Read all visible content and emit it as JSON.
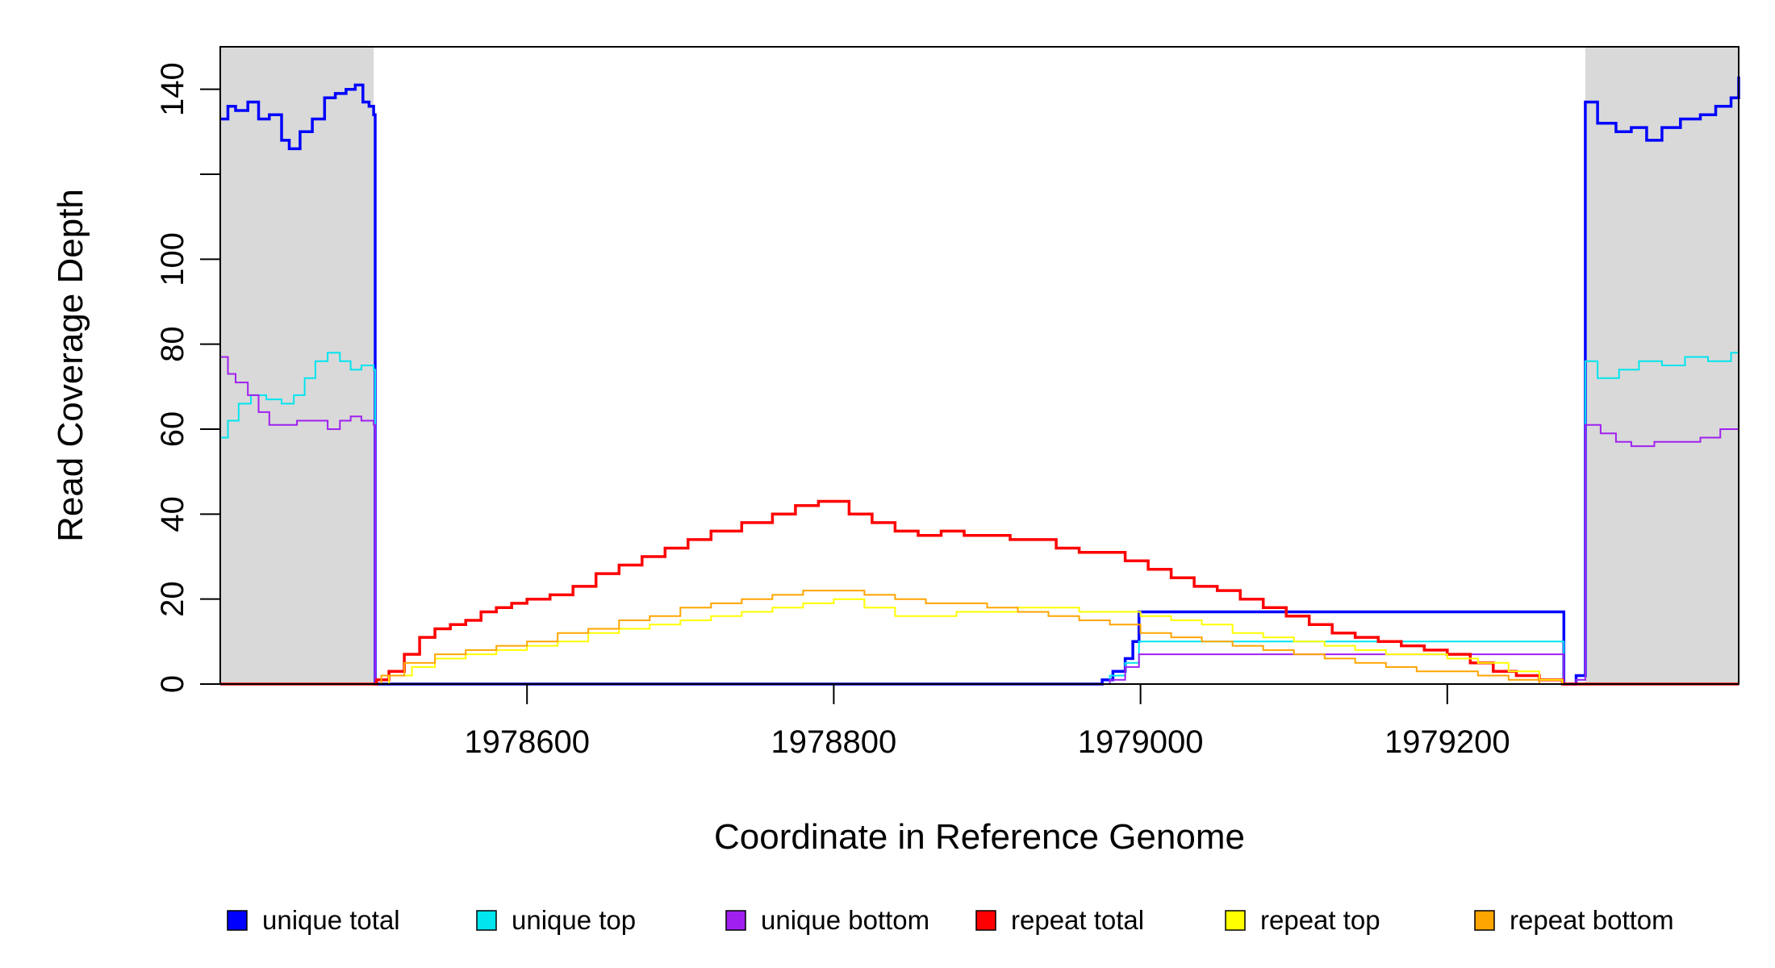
{
  "chart_data": {
    "type": "line",
    "xlabel": "Coordinate in Reference Genome",
    "ylabel": "Read Coverage Depth",
    "xlim": [
      1978400,
      1979390
    ],
    "ylim": [
      0,
      150
    ],
    "x_ticks": [
      1978600,
      1978800,
      1979000,
      1979200
    ],
    "x_tick_labels": [
      "1978600",
      "1978800",
      "1979000",
      "1979200"
    ],
    "y_ticks": [
      0,
      20,
      40,
      60,
      80,
      100,
      120,
      140
    ],
    "y_tick_labels": [
      "0",
      "20",
      "40",
      "60",
      "80",
      "100",
      "",
      "140"
    ],
    "shaded_regions": [
      [
        1978400,
        1978500
      ],
      [
        1979290,
        1979390
      ]
    ],
    "shade_color": "#d9d9d9",
    "legend_position": "bottom",
    "series": [
      {
        "name": "unique total",
        "color": "#0000ff",
        "points": [
          [
            1978400,
            133
          ],
          [
            1978405,
            136
          ],
          [
            1978410,
            135
          ],
          [
            1978418,
            137
          ],
          [
            1978425,
            133
          ],
          [
            1978432,
            134
          ],
          [
            1978440,
            128
          ],
          [
            1978445,
            126
          ],
          [
            1978452,
            130
          ],
          [
            1978460,
            133
          ],
          [
            1978468,
            138
          ],
          [
            1978475,
            139
          ],
          [
            1978482,
            140
          ],
          [
            1978488,
            141
          ],
          [
            1978493,
            137
          ],
          [
            1978497,
            136
          ],
          [
            1978500,
            134
          ],
          [
            1978501,
            0
          ],
          [
            1978970,
            0
          ],
          [
            1978975,
            1
          ],
          [
            1978982,
            3
          ],
          [
            1978990,
            6
          ],
          [
            1978995,
            10
          ],
          [
            1978999,
            17
          ],
          [
            1979275,
            17
          ],
          [
            1979276,
            0
          ],
          [
            1979283,
            0
          ],
          [
            1979284,
            2
          ],
          [
            1979290,
            137
          ],
          [
            1979298,
            132
          ],
          [
            1979310,
            130
          ],
          [
            1979320,
            131
          ],
          [
            1979330,
            128
          ],
          [
            1979340,
            131
          ],
          [
            1979352,
            133
          ],
          [
            1979365,
            134
          ],
          [
            1979375,
            136
          ],
          [
            1979385,
            138
          ],
          [
            1979390,
            143
          ]
        ]
      },
      {
        "name": "unique top",
        "color": "#00e5ee",
        "points": [
          [
            1978400,
            58
          ],
          [
            1978405,
            62
          ],
          [
            1978412,
            66
          ],
          [
            1978420,
            68
          ],
          [
            1978430,
            67
          ],
          [
            1978440,
            66
          ],
          [
            1978448,
            68
          ],
          [
            1978455,
            72
          ],
          [
            1978462,
            76
          ],
          [
            1978470,
            78
          ],
          [
            1978478,
            76
          ],
          [
            1978485,
            74
          ],
          [
            1978492,
            75
          ],
          [
            1978500,
            74
          ],
          [
            1978501,
            0
          ],
          [
            1978970,
            0
          ],
          [
            1978980,
            2
          ],
          [
            1978990,
            5
          ],
          [
            1978999,
            10
          ],
          [
            1979275,
            10
          ],
          [
            1979276,
            0
          ],
          [
            1979284,
            1
          ],
          [
            1979290,
            76
          ],
          [
            1979298,
            72
          ],
          [
            1979312,
            74
          ],
          [
            1979325,
            76
          ],
          [
            1979340,
            75
          ],
          [
            1979355,
            77
          ],
          [
            1979370,
            76
          ],
          [
            1979385,
            78
          ],
          [
            1979390,
            84
          ]
        ]
      },
      {
        "name": "unique bottom",
        "color": "#a020f0",
        "points": [
          [
            1978400,
            77
          ],
          [
            1978405,
            73
          ],
          [
            1978410,
            71
          ],
          [
            1978418,
            68
          ],
          [
            1978425,
            64
          ],
          [
            1978432,
            61
          ],
          [
            1978440,
            61
          ],
          [
            1978450,
            62
          ],
          [
            1978460,
            62
          ],
          [
            1978470,
            60
          ],
          [
            1978478,
            62
          ],
          [
            1978485,
            63
          ],
          [
            1978492,
            62
          ],
          [
            1978500,
            61
          ],
          [
            1978501,
            0
          ],
          [
            1978970,
            0
          ],
          [
            1978980,
            1
          ],
          [
            1978990,
            4
          ],
          [
            1978999,
            7
          ],
          [
            1979275,
            7
          ],
          [
            1979276,
            0
          ],
          [
            1979284,
            1
          ],
          [
            1979290,
            61
          ],
          [
            1979300,
            59
          ],
          [
            1979310,
            57
          ],
          [
            1979320,
            56
          ],
          [
            1979335,
            57
          ],
          [
            1979350,
            57
          ],
          [
            1979365,
            58
          ],
          [
            1979378,
            60
          ],
          [
            1979390,
            61
          ]
        ]
      },
      {
        "name": "repeat total",
        "color": "#ff0000",
        "points": [
          [
            1978400,
            0
          ],
          [
            1978500,
            0
          ],
          [
            1978502,
            1
          ],
          [
            1978510,
            3
          ],
          [
            1978520,
            7
          ],
          [
            1978530,
            11
          ],
          [
            1978540,
            13
          ],
          [
            1978550,
            14
          ],
          [
            1978560,
            15
          ],
          [
            1978570,
            17
          ],
          [
            1978580,
            18
          ],
          [
            1978590,
            19
          ],
          [
            1978600,
            20
          ],
          [
            1978615,
            21
          ],
          [
            1978630,
            23
          ],
          [
            1978645,
            26
          ],
          [
            1978660,
            28
          ],
          [
            1978675,
            30
          ],
          [
            1978690,
            32
          ],
          [
            1978705,
            34
          ],
          [
            1978720,
            36
          ],
          [
            1978740,
            38
          ],
          [
            1978760,
            40
          ],
          [
            1978775,
            42
          ],
          [
            1978790,
            43
          ],
          [
            1978800,
            43
          ],
          [
            1978810,
            40
          ],
          [
            1978825,
            38
          ],
          [
            1978840,
            36
          ],
          [
            1978855,
            35
          ],
          [
            1978870,
            36
          ],
          [
            1978885,
            35
          ],
          [
            1978900,
            35
          ],
          [
            1978915,
            34
          ],
          [
            1978930,
            34
          ],
          [
            1978945,
            32
          ],
          [
            1978960,
            31
          ],
          [
            1978975,
            31
          ],
          [
            1978990,
            29
          ],
          [
            1979005,
            27
          ],
          [
            1979020,
            25
          ],
          [
            1979035,
            23
          ],
          [
            1979050,
            22
          ],
          [
            1979065,
            20
          ],
          [
            1979080,
            18
          ],
          [
            1979095,
            16
          ],
          [
            1979110,
            14
          ],
          [
            1979125,
            12
          ],
          [
            1979140,
            11
          ],
          [
            1979155,
            10
          ],
          [
            1979170,
            9
          ],
          [
            1979185,
            8
          ],
          [
            1979200,
            7
          ],
          [
            1979215,
            5
          ],
          [
            1979230,
            3
          ],
          [
            1979245,
            2
          ],
          [
            1979260,
            1
          ],
          [
            1979275,
            0
          ],
          [
            1979390,
            0
          ]
        ]
      },
      {
        "name": "repeat top",
        "color": "#ffff00",
        "points": [
          [
            1978400,
            0
          ],
          [
            1978500,
            0
          ],
          [
            1978510,
            2
          ],
          [
            1978525,
            4
          ],
          [
            1978540,
            6
          ],
          [
            1978560,
            7
          ],
          [
            1978580,
            8
          ],
          [
            1978600,
            9
          ],
          [
            1978620,
            10
          ],
          [
            1978640,
            12
          ],
          [
            1978660,
            13
          ],
          [
            1978680,
            14
          ],
          [
            1978700,
            15
          ],
          [
            1978720,
            16
          ],
          [
            1978740,
            17
          ],
          [
            1978760,
            18
          ],
          [
            1978780,
            19
          ],
          [
            1978800,
            20
          ],
          [
            1978820,
            18
          ],
          [
            1978840,
            16
          ],
          [
            1978860,
            16
          ],
          [
            1978880,
            17
          ],
          [
            1978900,
            17
          ],
          [
            1978920,
            18
          ],
          [
            1978940,
            18
          ],
          [
            1978960,
            17
          ],
          [
            1978980,
            17
          ],
          [
            1979000,
            16
          ],
          [
            1979020,
            15
          ],
          [
            1979040,
            14
          ],
          [
            1979060,
            12
          ],
          [
            1979080,
            11
          ],
          [
            1979100,
            10
          ],
          [
            1979120,
            9
          ],
          [
            1979140,
            8
          ],
          [
            1979160,
            7
          ],
          [
            1979180,
            7
          ],
          [
            1979200,
            6
          ],
          [
            1979220,
            5
          ],
          [
            1979240,
            3
          ],
          [
            1979260,
            1
          ],
          [
            1979275,
            0
          ],
          [
            1979390,
            0
          ]
        ]
      },
      {
        "name": "repeat bottom",
        "color": "#ffa500",
        "points": [
          [
            1978400,
            0
          ],
          [
            1978500,
            0
          ],
          [
            1978505,
            2
          ],
          [
            1978520,
            5
          ],
          [
            1978540,
            7
          ],
          [
            1978560,
            8
          ],
          [
            1978580,
            9
          ],
          [
            1978600,
            10
          ],
          [
            1978620,
            12
          ],
          [
            1978640,
            13
          ],
          [
            1978660,
            15
          ],
          [
            1978680,
            16
          ],
          [
            1978700,
            18
          ],
          [
            1978720,
            19
          ],
          [
            1978740,
            20
          ],
          [
            1978760,
            21
          ],
          [
            1978780,
            22
          ],
          [
            1978800,
            22
          ],
          [
            1978820,
            21
          ],
          [
            1978840,
            20
          ],
          [
            1978860,
            19
          ],
          [
            1978880,
            19
          ],
          [
            1978900,
            18
          ],
          [
            1978920,
            17
          ],
          [
            1978940,
            16
          ],
          [
            1978960,
            15
          ],
          [
            1978980,
            14
          ],
          [
            1979000,
            12
          ],
          [
            1979020,
            11
          ],
          [
            1979040,
            10
          ],
          [
            1979060,
            9
          ],
          [
            1979080,
            8
          ],
          [
            1979100,
            7
          ],
          [
            1979120,
            6
          ],
          [
            1979140,
            5
          ],
          [
            1979160,
            4
          ],
          [
            1979180,
            3
          ],
          [
            1979200,
            3
          ],
          [
            1979220,
            2
          ],
          [
            1979240,
            1
          ],
          [
            1979260,
            0
          ],
          [
            1979390,
            0
          ]
        ]
      }
    ]
  }
}
